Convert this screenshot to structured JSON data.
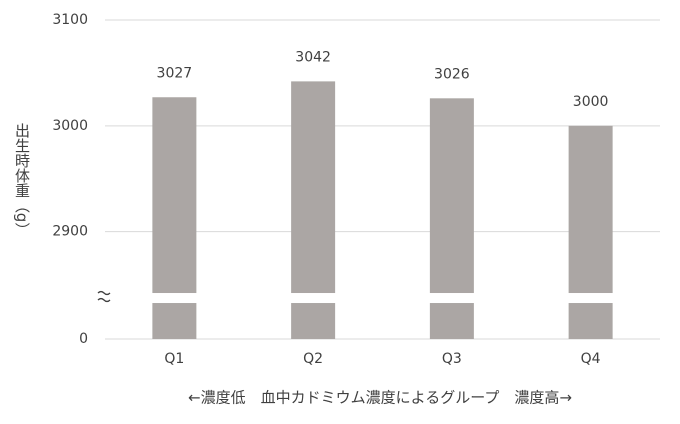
{
  "chart_data": {
    "type": "bar",
    "y_label": "出生時体重（g）",
    "x_label": "←濃度低　血中カドミウム濃度によるグループ　濃度高→",
    "categories": [
      "Q1",
      "Q2",
      "Q3",
      "Q4"
    ],
    "values": [
      3027,
      3042,
      3026,
      3000
    ],
    "color": "#aba6a4",
    "ylim": [
      0,
      3100
    ],
    "y_break": [
      34,
      2842
    ],
    "yticks": [
      0,
      2900,
      3000,
      3100
    ],
    "grid": true
  }
}
